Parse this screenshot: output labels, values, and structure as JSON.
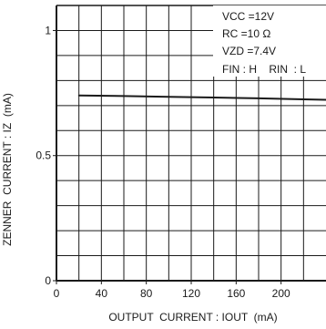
{
  "chart_data": {
    "type": "line",
    "title": "",
    "xlabel": "OUTPUT  CURRENT : IOUT  (mA)",
    "ylabel": "ZENNER  CURRENT : IZ  (mA)",
    "xlim": [
      0,
      240
    ],
    "ylim": [
      0,
      1.1
    ],
    "x_ticks": [
      0,
      40,
      80,
      120,
      160,
      200
    ],
    "x_tick_labels": [
      "0",
      "40",
      "80",
      "120",
      "160",
      "200"
    ],
    "y_ticks": [
      0,
      0.5,
      1
    ],
    "y_tick_labels": [
      "0",
      "0.5",
      "1"
    ],
    "grid": true,
    "series": [
      {
        "x": [
          20,
          60,
          100,
          140,
          180,
          220,
          240
        ],
        "y": [
          0.74,
          0.738,
          0.735,
          0.732,
          0.729,
          0.725,
          0.723
        ]
      }
    ],
    "conditions": [
      "VCC =12V",
      "RC =10 Ω",
      "VZD =7.4V",
      "FIN : H    RIN  : L"
    ],
    "colors": {
      "line": "#1a1a1a",
      "grid": "#1a1a1a",
      "background": "#ffffff"
    }
  }
}
